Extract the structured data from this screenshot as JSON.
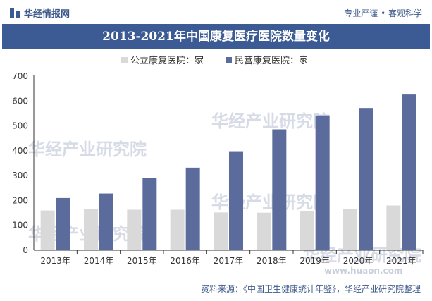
{
  "header": {
    "brand": "华经情报网",
    "tagline": "专业严谨 • 客观科学"
  },
  "chart_data": {
    "type": "bar",
    "title": "2013-2021年中国康复医疗医院数量变化",
    "categories": [
      "2013年",
      "2014年",
      "2015年",
      "2016年",
      "2017年",
      "2018年",
      "2019年",
      "2020年",
      "2021年"
    ],
    "series": [
      {
        "name": "公立康复医院：家",
        "color": "#d9d9d9",
        "values": [
          160,
          166,
          163,
          163,
          152,
          151,
          158,
          165,
          180
        ]
      },
      {
        "name": "民营康复医院：家",
        "color": "#5b6b9c",
        "values": [
          210,
          228,
          290,
          332,
          398,
          486,
          542,
          572,
          626
        ]
      }
    ],
    "yticks": [
      "0",
      "100",
      "200",
      "300",
      "400",
      "500",
      "600",
      "700"
    ],
    "ylim": [
      0,
      700
    ],
    "xlabel": "",
    "ylabel": "",
    "legend_position": "top"
  },
  "watermark": {
    "text": "华经产业研究院",
    "url": "www.huaon.com"
  },
  "footer": {
    "source": "资料来源：《中国卫生健康统计年鉴》，华经产业研究院整理"
  }
}
